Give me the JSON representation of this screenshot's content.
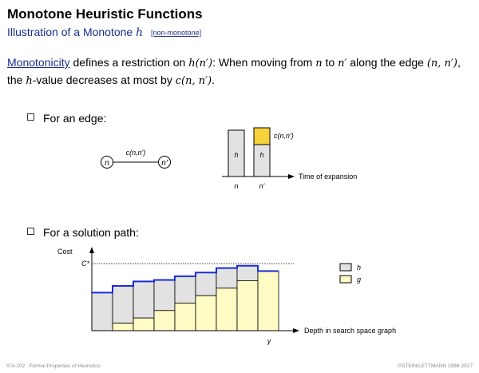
{
  "header": {
    "title": "Monotone Heuristic Functions",
    "subtitle_prefix": "Illustration of a Monotone",
    "subtitle_var": "h",
    "subtitle_link": "[non-monotone]"
  },
  "definition": {
    "keyword": "Monotonicity",
    "t1": " defines a restriction on ",
    "m1": "h(n′)",
    "t2": ": When moving from ",
    "m2": "n",
    "t3": " to ",
    "m3": "n′",
    "t4": " along the edge ",
    "m4": "(n, n′)",
    "t5": ", the ",
    "m5": "h",
    "t6": "-value decreases at most by ",
    "m6": "c(n, n′)",
    "t7": "."
  },
  "bullets": {
    "edge": "For an edge:",
    "path": "For a solution path:"
  },
  "edge_diagram": {
    "node_n": "n",
    "node_n_prime": "n′",
    "edge_label": "c(n,n′)",
    "cost_label": "c(n,n′)",
    "bar_label": "h",
    "axis_label": "Time of expansion",
    "x_labels": [
      "n",
      "n′"
    ]
  },
  "chart_data": {
    "type": "bar",
    "stacked": true,
    "xlabel": "Depth in search space graph",
    "ylabel": "Cost",
    "y_marker": "C*",
    "x_marker": "γ",
    "legend": [
      "h",
      "g"
    ],
    "legend_position": "right",
    "series": [
      {
        "name": "g",
        "color": "#fefbc4",
        "values": [
          0,
          10,
          17,
          27,
          37,
          47,
          57,
          67,
          80
        ]
      },
      {
        "name": "h",
        "color": "#e2e2e2",
        "values": [
          51,
          50,
          49,
          41,
          36,
          31,
          27,
          20,
          0
        ]
      }
    ],
    "f_line_color": "#1c2bd9",
    "ylim": [
      0,
      90
    ]
  },
  "footer": {
    "left_code": "S:V-102",
    "left_text": "Formal Properties of Heuristics",
    "right": "©STEIN/LETTMANN 1998-2017"
  },
  "colors": {
    "accent": "#1a2e8a",
    "h_fill": "#e2e2e2",
    "g_fill": "#fefbc4",
    "cost_fill": "#f7d23a",
    "path_line": "#1c2bd9"
  }
}
